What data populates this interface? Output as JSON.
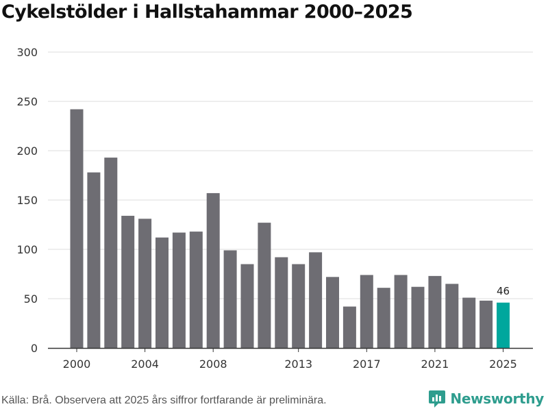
{
  "chart_data": {
    "type": "bar",
    "title": "Cykelstölder i Hallstahammar 2000–2025",
    "xlabel": "",
    "ylabel": "",
    "ylim": [
      0,
      300
    ],
    "yticks": [
      0,
      50,
      100,
      150,
      200,
      250,
      300
    ],
    "xtick_labels": [
      "2000",
      "2004",
      "2008",
      "2013",
      "2017",
      "2021",
      "2025"
    ],
    "categories": [
      "2000",
      "2001",
      "2002",
      "2003",
      "2004",
      "2005",
      "2006",
      "2007",
      "2008",
      "2009",
      "2010",
      "2011",
      "2012",
      "2013",
      "2014",
      "2015",
      "2016",
      "2017",
      "2018",
      "2019",
      "2020",
      "2021",
      "2022",
      "2023",
      "2024",
      "2025"
    ],
    "values": [
      242,
      178,
      193,
      134,
      131,
      112,
      117,
      118,
      157,
      99,
      85,
      127,
      92,
      85,
      97,
      72,
      42,
      74,
      61,
      74,
      62,
      73,
      65,
      51,
      48,
      46
    ],
    "highlight_category": "2025",
    "data_labels": [
      {
        "category": "2025",
        "text": "46"
      }
    ],
    "colors": {
      "bar": "#6e6d73",
      "highlight": "#00a79d",
      "grid": "#dddddd",
      "axis": "#333333"
    }
  },
  "footer": {
    "source": "Källa: Brå. Observera att 2025 års siffror fortfarande är preliminära.",
    "brand": "Newsworthy",
    "brand_color": "#2e9d8e"
  }
}
